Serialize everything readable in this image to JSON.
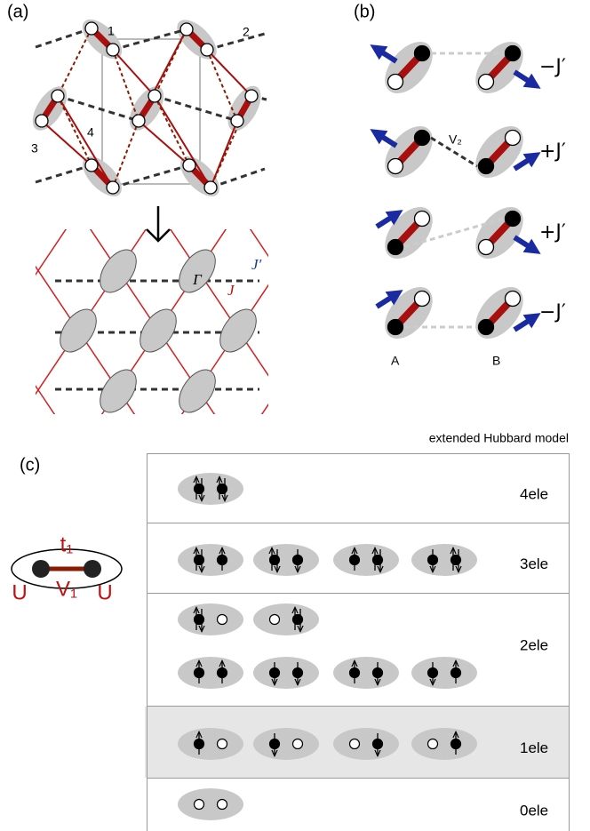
{
  "panel_a": {
    "label": "(a)",
    "site_labels": [
      "1",
      "2",
      "3",
      "4"
    ],
    "gamma": "Γ",
    "j_prime": "J′",
    "j": "J"
  },
  "panel_b": {
    "label": "(b)",
    "rows": [
      {
        "coupling": "−J′"
      },
      {
        "coupling": "+J′"
      },
      {
        "coupling": "+J′"
      },
      {
        "coupling": "−J′"
      }
    ],
    "bond_label": "V₂",
    "site_a": "A",
    "site_b": "B"
  },
  "panel_c": {
    "label": "(c)",
    "title": "extended Hubbard model",
    "dimer": {
      "hopping": "t₁",
      "interaction": "V₁",
      "onsite_left": "U",
      "onsite_right": "U"
    },
    "rows": [
      {
        "label": "4ele"
      },
      {
        "label": "3ele"
      },
      {
        "label": "2ele"
      },
      {
        "label": "1ele"
      },
      {
        "label": "0ele"
      }
    ]
  }
}
